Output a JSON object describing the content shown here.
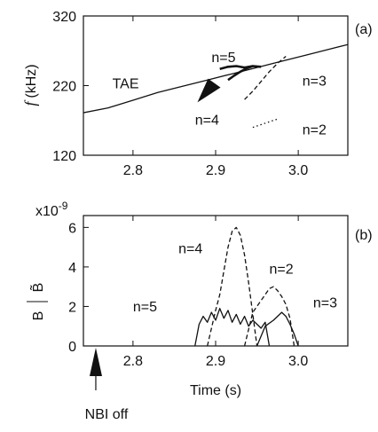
{
  "chart_data": [
    {
      "type": "line",
      "panel_label": "(a)",
      "ylabel": "f (kHz)",
      "ylabel_italic": "f",
      "ylabel_unit": "(kHz)",
      "xlim": [
        2.74,
        3.06
      ],
      "ylim": [
        120,
        320
      ],
      "x_ticks": [
        2.8,
        2.9,
        3.0
      ],
      "x_tick_labels": [
        "2.8",
        "2.9",
        "3.0"
      ],
      "y_ticks": [
        120,
        220,
        320
      ],
      "y_tick_labels": [
        "120",
        "220",
        "320"
      ],
      "series": [
        {
          "name": "TAE",
          "style": "solid",
          "x": [
            2.74,
            2.77,
            2.8,
            2.83,
            2.86,
            2.89,
            2.92,
            2.95,
            2.98,
            3.01,
            3.04,
            3.06
          ],
          "y": [
            181,
            188,
            199,
            210,
            219,
            228,
            237,
            246,
            255,
            264,
            273,
            279
          ]
        },
        {
          "name": "n=5",
          "style": "bold",
          "x": [
            2.905,
            2.915,
            2.925,
            2.935,
            2.945,
            2.955
          ],
          "y": [
            244,
            247,
            248,
            246,
            248,
            247
          ]
        },
        {
          "name": "n=4",
          "style": "bold",
          "x": [
            2.915,
            2.922,
            2.93,
            2.938,
            2.945
          ],
          "y": [
            228,
            234,
            240,
            245,
            248
          ]
        },
        {
          "name": "n=3",
          "style": "dashed",
          "x": [
            2.935,
            2.945,
            2.955,
            2.965,
            2.975,
            2.985
          ],
          "y": [
            200,
            212,
            226,
            240,
            252,
            262
          ]
        },
        {
          "name": "n=2",
          "style": "dotted",
          "x": [
            2.945,
            2.955,
            2.965,
            2.975
          ],
          "y": [
            160,
            164,
            168,
            172
          ]
        }
      ],
      "annotations": [
        {
          "text": "TAE",
          "x": 2.775,
          "y": 216
        },
        {
          "text": "n=5",
          "x": 2.895,
          "y": 254
        },
        {
          "text": "n=3",
          "x": 3.005,
          "y": 220
        },
        {
          "text": "n=4",
          "x": 2.875,
          "y": 164
        },
        {
          "text": "n=2",
          "x": 3.005,
          "y": 150
        }
      ],
      "arrow": {
        "x": 2.878,
        "y_tip": 196,
        "y_tail": 225
      }
    },
    {
      "type": "line",
      "panel_label": "(b)",
      "ylabel": "B̃/B",
      "ylabel_num": "B̃",
      "ylabel_den": "B",
      "y_multiplier": "x10",
      "y_multiplier_exp": "-9",
      "xlabel": "Time (s)",
      "xlim": [
        2.74,
        3.06
      ],
      "ylim": [
        0,
        6.6
      ],
      "x_ticks": [
        2.8,
        2.9,
        3.0
      ],
      "x_tick_labels": [
        "2.8",
        "2.9",
        "3.0"
      ],
      "y_ticks": [
        0,
        2,
        4,
        6
      ],
      "y_tick_labels": [
        "0",
        "2",
        "4",
        "6"
      ],
      "series": [
        {
          "name": "n=5",
          "style": "solid",
          "x": [
            2.875,
            2.88,
            2.885,
            2.89,
            2.895,
            2.9,
            2.905,
            2.91,
            2.915,
            2.92,
            2.925,
            2.93,
            2.935,
            2.94,
            2.945,
            2.95,
            2.955,
            2.96,
            2.965
          ],
          "y": [
            0,
            1.1,
            1.5,
            1.2,
            1.7,
            1.3,
            1.9,
            1.4,
            1.8,
            1.2,
            1.6,
            1.1,
            1.5,
            1.0,
            1.3,
            1.1,
            0.9,
            1.2,
            0
          ]
        },
        {
          "name": "n=4",
          "style": "dashed",
          "x": [
            2.89,
            2.9,
            2.905,
            2.91,
            2.915,
            2.92,
            2.925,
            2.93,
            2.935,
            2.94,
            2.945,
            2.95
          ],
          "y": [
            0,
            1.8,
            2.6,
            3.8,
            5.0,
            5.8,
            6.0,
            5.6,
            4.6,
            3.2,
            1.6,
            0
          ]
        },
        {
          "name": "n=2",
          "style": "dashed",
          "x": [
            2.935,
            2.945,
            2.955,
            2.96,
            2.965,
            2.97,
            2.975,
            2.98,
            2.985,
            2.99,
            2.995
          ],
          "y": [
            0,
            1.7,
            2.3,
            2.6,
            2.9,
            3.0,
            2.8,
            2.5,
            2.1,
            1.4,
            0
          ]
        },
        {
          "name": "n=3",
          "style": "solid",
          "x": [
            2.95,
            2.96,
            2.97,
            2.98,
            2.985,
            2.99,
            2.995,
            3.0
          ],
          "y": [
            0,
            1.0,
            1.3,
            1.7,
            1.5,
            1.1,
            0.6,
            0
          ]
        }
      ],
      "annotations": [
        {
          "text": "n=4",
          "x": 2.855,
          "y": 4.7
        },
        {
          "text": "n=2",
          "x": 2.965,
          "y": 3.65
        },
        {
          "text": "n=5",
          "x": 2.8,
          "y": 1.75
        },
        {
          "text": "n=3",
          "x": 3.018,
          "y": 1.95
        }
      ],
      "arrow": {
        "x": 2.755,
        "label": "NBI off"
      }
    }
  ]
}
